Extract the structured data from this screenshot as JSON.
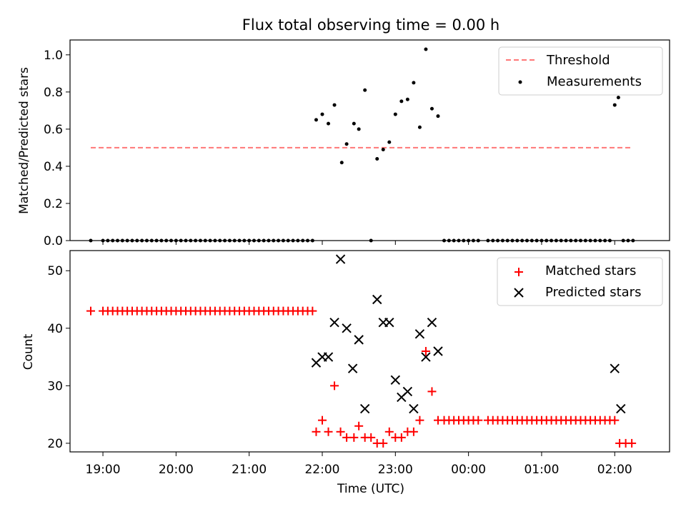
{
  "chart_data": {
    "type": "scatter",
    "title": "Flux total observing time = 0.00 h",
    "xlabel": "Time (UTC)",
    "x_tick_labels": [
      "19:00",
      "20:00",
      "21:00",
      "22:00",
      "23:00",
      "00:00",
      "01:00",
      "02:00"
    ],
    "xlim": [
      "18:33",
      "02:45"
    ],
    "panels": [
      {
        "ylabel": "Matched/Predicted stars",
        "ylim": [
          0,
          1.08
        ],
        "y_ticks": [
          "0.0",
          "0.2",
          "0.4",
          "0.6",
          "0.8",
          "1.0"
        ],
        "legend_position": "upper right",
        "threshold": {
          "name": "Threshold",
          "value": 0.5,
          "x_range": [
            "18:50",
            "02:13"
          ],
          "color": "#ff7777"
        },
        "series": [
          {
            "name": "Measurements",
            "color": "#000000",
            "marker": "dot",
            "points": [
              [
                "18:50",
                0.0
              ],
              [
                "19:00",
                0.0
              ],
              [
                "19:04",
                0.0
              ],
              [
                "19:08",
                0.0
              ],
              [
                "19:12",
                0.0
              ],
              [
                "19:16",
                0.0
              ],
              [
                "19:20",
                0.0
              ],
              [
                "19:24",
                0.0
              ],
              [
                "19:28",
                0.0
              ],
              [
                "19:32",
                0.0
              ],
              [
                "19:36",
                0.0
              ],
              [
                "19:40",
                0.0
              ],
              [
                "19:44",
                0.0
              ],
              [
                "19:48",
                0.0
              ],
              [
                "19:52",
                0.0
              ],
              [
                "19:56",
                0.0
              ],
              [
                "20:00",
                0.0
              ],
              [
                "20:04",
                0.0
              ],
              [
                "20:08",
                0.0
              ],
              [
                "20:12",
                0.0
              ],
              [
                "20:16",
                0.0
              ],
              [
                "20:20",
                0.0
              ],
              [
                "20:24",
                0.0
              ],
              [
                "20:28",
                0.0
              ],
              [
                "20:32",
                0.0
              ],
              [
                "20:36",
                0.0
              ],
              [
                "20:40",
                0.0
              ],
              [
                "20:44",
                0.0
              ],
              [
                "20:48",
                0.0
              ],
              [
                "20:52",
                0.0
              ],
              [
                "20:56",
                0.0
              ],
              [
                "21:00",
                0.0
              ],
              [
                "21:04",
                0.0
              ],
              [
                "21:08",
                0.0
              ],
              [
                "21:12",
                0.0
              ],
              [
                "21:16",
                0.0
              ],
              [
                "21:20",
                0.0
              ],
              [
                "21:24",
                0.0
              ],
              [
                "21:28",
                0.0
              ],
              [
                "21:32",
                0.0
              ],
              [
                "21:36",
                0.0
              ],
              [
                "21:40",
                0.0
              ],
              [
                "21:44",
                0.0
              ],
              [
                "21:48",
                0.0
              ],
              [
                "21:52",
                0.0
              ],
              [
                "21:55",
                0.65
              ],
              [
                "22:00",
                0.68
              ],
              [
                "22:05",
                0.63
              ],
              [
                "22:10",
                0.73
              ],
              [
                "22:16",
                0.42
              ],
              [
                "22:20",
                0.52
              ],
              [
                "22:26",
                0.63
              ],
              [
                "22:30",
                0.6
              ],
              [
                "22:35",
                0.81
              ],
              [
                "22:40",
                0.0
              ],
              [
                "22:45",
                0.44
              ],
              [
                "22:50",
                0.49
              ],
              [
                "22:55",
                0.53
              ],
              [
                "23:00",
                0.68
              ],
              [
                "23:05",
                0.75
              ],
              [
                "23:10",
                0.76
              ],
              [
                "23:15",
                0.85
              ],
              [
                "23:20",
                0.61
              ],
              [
                "23:25",
                1.03
              ],
              [
                "23:30",
                0.71
              ],
              [
                "23:35",
                0.67
              ],
              [
                "23:40",
                0.0
              ],
              [
                "23:44",
                0.0
              ],
              [
                "23:48",
                0.0
              ],
              [
                "23:52",
                0.0
              ],
              [
                "23:56",
                0.0
              ],
              [
                "00:00",
                0.0
              ],
              [
                "00:04",
                0.0
              ],
              [
                "00:08",
                0.0
              ],
              [
                "00:16",
                0.0
              ],
              [
                "00:20",
                0.0
              ],
              [
                "00:24",
                0.0
              ],
              [
                "00:28",
                0.0
              ],
              [
                "00:32",
                0.0
              ],
              [
                "00:36",
                0.0
              ],
              [
                "00:40",
                0.0
              ],
              [
                "00:44",
                0.0
              ],
              [
                "00:48",
                0.0
              ],
              [
                "00:52",
                0.0
              ],
              [
                "00:56",
                0.0
              ],
              [
                "01:00",
                0.0
              ],
              [
                "01:04",
                0.0
              ],
              [
                "01:08",
                0.0
              ],
              [
                "01:12",
                0.0
              ],
              [
                "01:16",
                0.0
              ],
              [
                "01:20",
                0.0
              ],
              [
                "01:24",
                0.0
              ],
              [
                "01:28",
                0.0
              ],
              [
                "01:32",
                0.0
              ],
              [
                "01:36",
                0.0
              ],
              [
                "01:40",
                0.0
              ],
              [
                "01:44",
                0.0
              ],
              [
                "01:48",
                0.0
              ],
              [
                "01:52",
                0.0
              ],
              [
                "01:56",
                0.0
              ],
              [
                "02:00",
                0.73
              ],
              [
                "02:03",
                0.77
              ],
              [
                "02:07",
                0.0
              ],
              [
                "02:11",
                0.0
              ],
              [
                "02:15",
                0.0
              ]
            ]
          }
        ]
      },
      {
        "ylabel": "Count",
        "ylim": [
          18.5,
          53.5
        ],
        "y_ticks": [
          "20",
          "30",
          "40",
          "50"
        ],
        "legend_position": "upper right",
        "series": [
          {
            "name": "Matched stars",
            "color": "#ff0000",
            "marker": "plus",
            "points": [
              [
                "18:50",
                43
              ],
              [
                "19:00",
                43
              ],
              [
                "19:04",
                43
              ],
              [
                "19:08",
                43
              ],
              [
                "19:12",
                43
              ],
              [
                "19:16",
                43
              ],
              [
                "19:20",
                43
              ],
              [
                "19:24",
                43
              ],
              [
                "19:28",
                43
              ],
              [
                "19:32",
                43
              ],
              [
                "19:36",
                43
              ],
              [
                "19:40",
                43
              ],
              [
                "19:44",
                43
              ],
              [
                "19:48",
                43
              ],
              [
                "19:52",
                43
              ],
              [
                "19:56",
                43
              ],
              [
                "20:00",
                43
              ],
              [
                "20:04",
                43
              ],
              [
                "20:08",
                43
              ],
              [
                "20:12",
                43
              ],
              [
                "20:16",
                43
              ],
              [
                "20:20",
                43
              ],
              [
                "20:24",
                43
              ],
              [
                "20:28",
                43
              ],
              [
                "20:32",
                43
              ],
              [
                "20:36",
                43
              ],
              [
                "20:40",
                43
              ],
              [
                "20:44",
                43
              ],
              [
                "20:48",
                43
              ],
              [
                "20:52",
                43
              ],
              [
                "20:56",
                43
              ],
              [
                "21:00",
                43
              ],
              [
                "21:04",
                43
              ],
              [
                "21:08",
                43
              ],
              [
                "21:12",
                43
              ],
              [
                "21:16",
                43
              ],
              [
                "21:20",
                43
              ],
              [
                "21:24",
                43
              ],
              [
                "21:28",
                43
              ],
              [
                "21:32",
                43
              ],
              [
                "21:36",
                43
              ],
              [
                "21:40",
                43
              ],
              [
                "21:44",
                43
              ],
              [
                "21:48",
                43
              ],
              [
                "21:52",
                43
              ],
              [
                "21:55",
                22
              ],
              [
                "22:00",
                24
              ],
              [
                "22:05",
                22
              ],
              [
                "22:10",
                30
              ],
              [
                "22:15",
                22
              ],
              [
                "22:20",
                21
              ],
              [
                "22:26",
                21
              ],
              [
                "22:30",
                23
              ],
              [
                "22:35",
                21
              ],
              [
                "22:40",
                21
              ],
              [
                "22:45",
                20
              ],
              [
                "22:50",
                20
              ],
              [
                "22:55",
                22
              ],
              [
                "23:00",
                21
              ],
              [
                "23:05",
                21
              ],
              [
                "23:10",
                22
              ],
              [
                "23:15",
                22
              ],
              [
                "23:20",
                24
              ],
              [
                "23:25",
                36
              ],
              [
                "23:30",
                29
              ],
              [
                "23:35",
                24
              ],
              [
                "23:40",
                24
              ],
              [
                "23:44",
                24
              ],
              [
                "23:48",
                24
              ],
              [
                "23:52",
                24
              ],
              [
                "23:56",
                24
              ],
              [
                "00:00",
                24
              ],
              [
                "00:04",
                24
              ],
              [
                "00:08",
                24
              ],
              [
                "00:16",
                24
              ],
              [
                "00:20",
                24
              ],
              [
                "00:24",
                24
              ],
              [
                "00:28",
                24
              ],
              [
                "00:32",
                24
              ],
              [
                "00:36",
                24
              ],
              [
                "00:40",
                24
              ],
              [
                "00:44",
                24
              ],
              [
                "00:48",
                24
              ],
              [
                "00:52",
                24
              ],
              [
                "00:56",
                24
              ],
              [
                "01:00",
                24
              ],
              [
                "01:04",
                24
              ],
              [
                "01:08",
                24
              ],
              [
                "01:12",
                24
              ],
              [
                "01:16",
                24
              ],
              [
                "01:20",
                24
              ],
              [
                "01:24",
                24
              ],
              [
                "01:28",
                24
              ],
              [
                "01:32",
                24
              ],
              [
                "01:36",
                24
              ],
              [
                "01:40",
                24
              ],
              [
                "01:44",
                24
              ],
              [
                "01:48",
                24
              ],
              [
                "01:52",
                24
              ],
              [
                "01:56",
                24
              ],
              [
                "02:00",
                24
              ],
              [
                "02:04",
                20
              ],
              [
                "02:09",
                20
              ],
              [
                "02:14",
                20
              ]
            ]
          },
          {
            "name": "Predicted stars",
            "color": "#000000",
            "marker": "x",
            "points": [
              [
                "21:55",
                34
              ],
              [
                "22:00",
                35
              ],
              [
                "22:05",
                35
              ],
              [
                "22:10",
                41
              ],
              [
                "22:15",
                52
              ],
              [
                "22:20",
                40
              ],
              [
                "22:25",
                33
              ],
              [
                "22:30",
                38
              ],
              [
                "22:35",
                26
              ],
              [
                "22:45",
                45
              ],
              [
                "22:50",
                41
              ],
              [
                "22:55",
                41
              ],
              [
                "23:00",
                31
              ],
              [
                "23:05",
                28
              ],
              [
                "23:10",
                29
              ],
              [
                "23:15",
                26
              ],
              [
                "23:20",
                39
              ],
              [
                "23:25",
                35
              ],
              [
                "23:30",
                41
              ],
              [
                "23:35",
                36
              ],
              [
                "02:00",
                33
              ],
              [
                "02:05",
                26
              ]
            ]
          }
        ]
      }
    ]
  }
}
